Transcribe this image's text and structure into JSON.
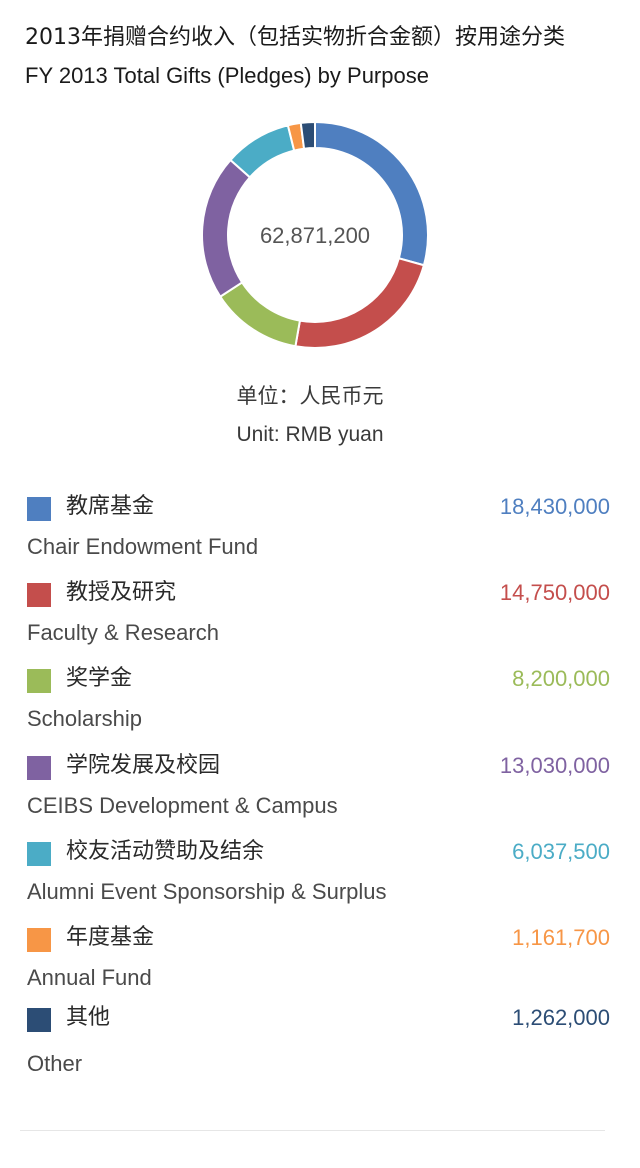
{
  "chart_data": {
    "type": "pie",
    "title": "2013年捐赠合约收入（包括实物折合金额）按用途分类",
    "subtitle": "FY 2013 Total Gifts (Pledges) by Purpose",
    "center_label": "62,871,200",
    "unit_cn": "单位：人民币元",
    "unit_en": "Unit: RMB yuan",
    "categories": [
      {
        "label_cn": "教席基金",
        "label_en": "Chair Endowment Fund",
        "value": 18430000,
        "value_text": "18,430,000",
        "color": "#4f7fc0"
      },
      {
        "label_cn": "教授及研究",
        "label_en": "Faculty & Research",
        "value": 14750000,
        "value_text": "14,750,000",
        "color": "#c44e4c"
      },
      {
        "label_cn": "奖学金",
        "label_en": "Scholarship",
        "value": 8200000,
        "value_text": "8,200,000",
        "color": "#9bbb59"
      },
      {
        "label_cn": "学院发展及校园",
        "label_en": "CEIBS Development & Campus",
        "value": 13030000,
        "value_text": "13,030,000",
        "color": "#7f62a1"
      },
      {
        "label_cn": "校友活动赞助及结余",
        "label_en": "Alumni Event Sponsorship & Surplus",
        "value": 6037500,
        "value_text": "6,037,500",
        "color": "#4bacc6"
      },
      {
        "label_cn": "年度基金",
        "label_en": "Annual Fund",
        "value": 1161700,
        "value_text": "1,161,700",
        "color": "#f79646"
      },
      {
        "label_cn": "其他",
        "label_en": "Other",
        "value": 1262000,
        "value_text": "1,262,000",
        "color": "#2c4d75"
      }
    ],
    "legend_placement": "bottom"
  }
}
